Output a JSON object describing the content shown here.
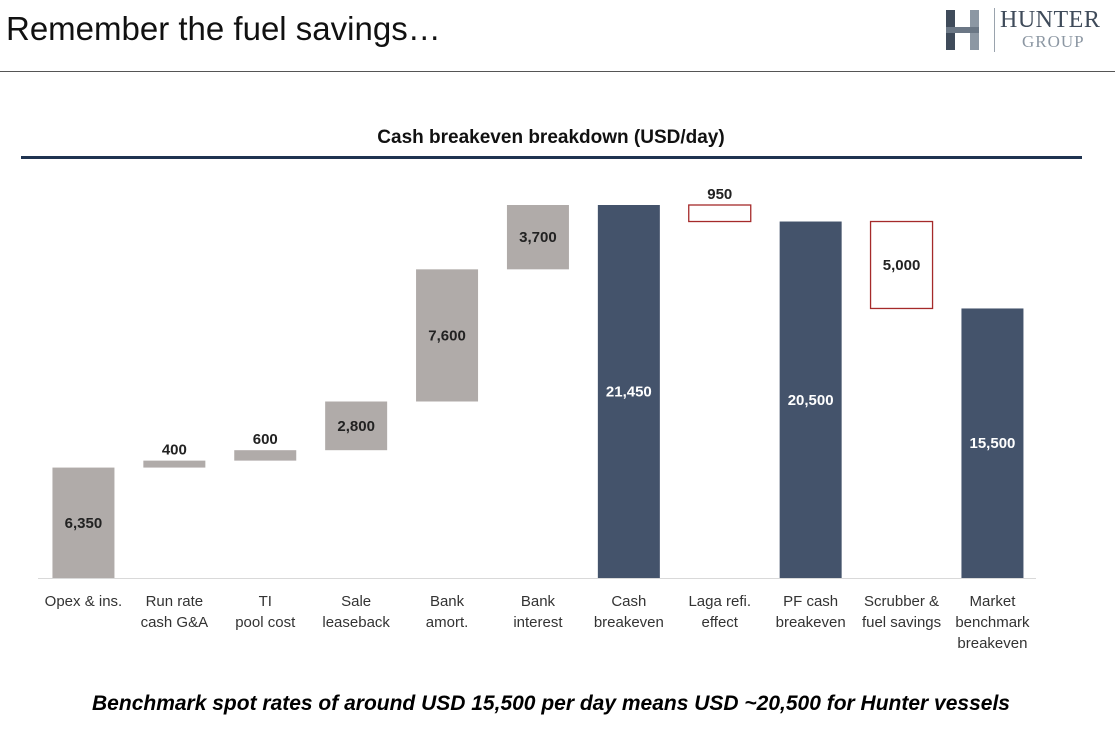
{
  "slide": {
    "title": "Remember the fuel savings…",
    "footer_note": "Benchmark spot rates of around USD 15,500 per day means USD ~20,500 for Hunter vessels"
  },
  "logo": {
    "mark_letter": "H",
    "name_top": "HUNTER",
    "name_bottom": "GROUP"
  },
  "colors": {
    "increment": "#b0aba9",
    "total": "#44536b",
    "decrement_border": "#a52a2a",
    "title_rule": "#1f3350",
    "dark_label": "#222222",
    "light_label": "#ffffff"
  },
  "chart_data": {
    "type": "bar",
    "subtype": "waterfall",
    "title": "Cash breakeven breakdown (USD/day)",
    "xlabel": "",
    "ylabel": "",
    "ylim": [
      0,
      21450
    ],
    "grid": false,
    "legend": "none",
    "categories": [
      [
        "Opex & ins."
      ],
      [
        "Run rate",
        "cash G&A"
      ],
      [
        "TI",
        "pool cost"
      ],
      [
        "Sale",
        "leaseback"
      ],
      [
        "Bank",
        "amort."
      ],
      [
        "Bank",
        "interest"
      ],
      [
        "Cash",
        "breakeven"
      ],
      [
        "Laga refi.",
        "effect"
      ],
      [
        "PF cash",
        "breakeven"
      ],
      [
        "Scrubber &",
        "fuel savings"
      ],
      [
        "Market",
        "benchmark",
        "breakeven"
      ]
    ],
    "steps": [
      {
        "label": "6,350",
        "value": 6350,
        "kind": "increase"
      },
      {
        "label": "400",
        "value": 400,
        "kind": "increase"
      },
      {
        "label": "600",
        "value": 600,
        "kind": "increase"
      },
      {
        "label": "2,800",
        "value": 2800,
        "kind": "increase"
      },
      {
        "label": "7,600",
        "value": 7600,
        "kind": "increase"
      },
      {
        "label": "3,700",
        "value": 3700,
        "kind": "increase"
      },
      {
        "label": "21,450",
        "value": 21450,
        "kind": "total"
      },
      {
        "label": "950",
        "value": 950,
        "kind": "decrease"
      },
      {
        "label": "20,500",
        "value": 20500,
        "kind": "total"
      },
      {
        "label": "5,000",
        "value": 5000,
        "kind": "decrease"
      },
      {
        "label": "15,500",
        "value": 15500,
        "kind": "total"
      }
    ]
  }
}
